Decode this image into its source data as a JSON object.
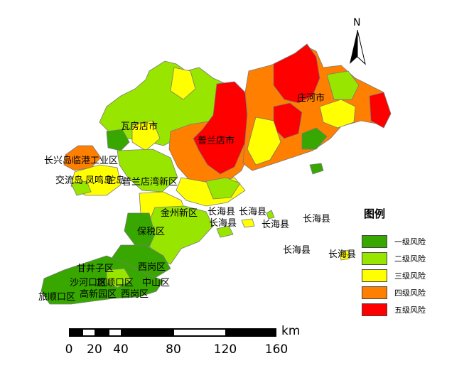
{
  "map": {
    "north_label": "N",
    "place_labels": [
      "庄河市",
      "瓦房店市",
      "普兰店市",
      "长兴岛临港工业区",
      "交流岛",
      "凤鸣岛",
      "驼岛",
      "普兰店湾新区",
      "金州新区",
      "保税区",
      "长海县",
      "长海县",
      "长海县",
      "长海县",
      "长海县",
      "长海县",
      "长海县",
      "甘井子区",
      "沙河口区",
      "西岗区",
      "中山区",
      "旅顺口区",
      "高新园区",
      "西岗区",
      "旅顺口区"
    ]
  },
  "legend": {
    "title": "图例",
    "items": [
      {
        "label": "一级风险",
        "color": "#38a800"
      },
      {
        "label": "二级风险",
        "color": "#98e600"
      },
      {
        "label": "三级风险",
        "color": "#ffff00"
      },
      {
        "label": "四级风险",
        "color": "#ff7f00"
      },
      {
        "label": "五级风险",
        "color": "#ff0000"
      }
    ]
  },
  "scale_bar": {
    "unit": "km",
    "ticks": [
      "0",
      "20",
      "40",
      "80",
      "120",
      "160"
    ]
  },
  "colors": {
    "level1": "#38a800",
    "level2": "#98e600",
    "level3": "#ffff00",
    "level4": "#ff7f00",
    "level5": "#ff0000"
  }
}
